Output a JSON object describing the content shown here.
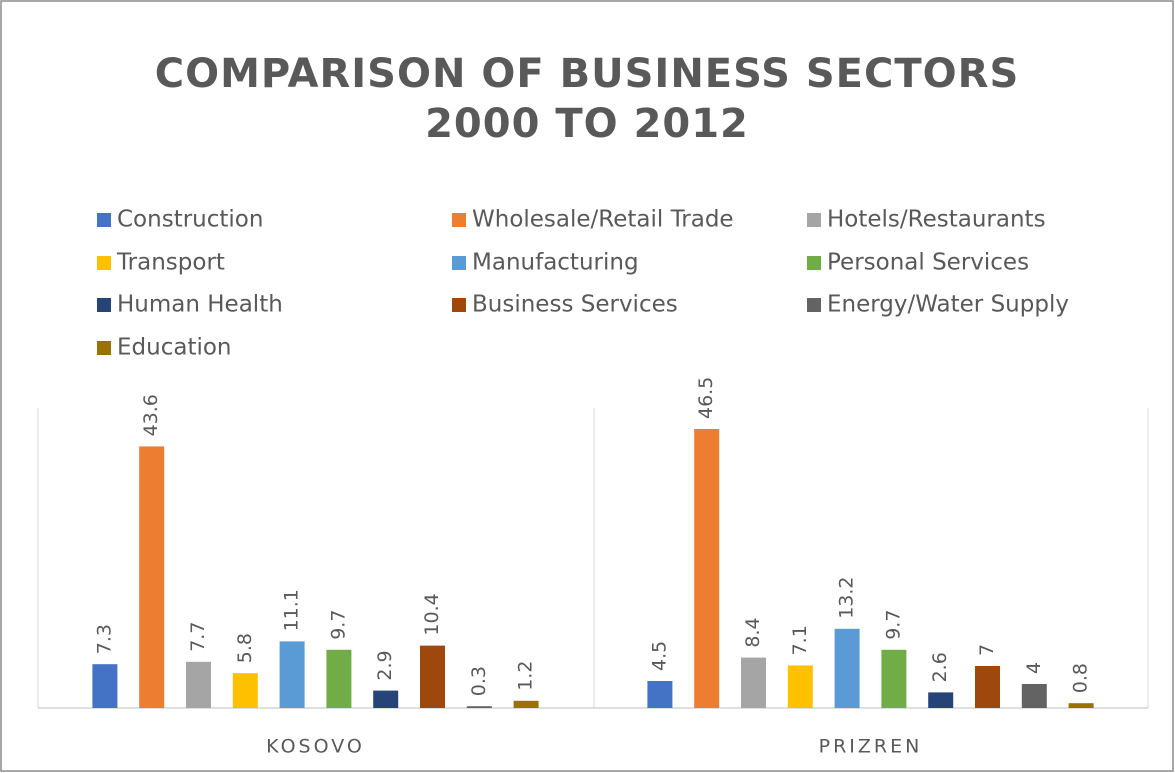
{
  "chart_data": {
    "type": "bar",
    "title": [
      "COMPARISON OF BUSINESS SECTORS",
      "2000 TO 2012"
    ],
    "categories": [
      "KOSOVO",
      "PRIZREN"
    ],
    "series": [
      {
        "name": "Construction",
        "color": "#4472c4",
        "values": [
          7.3,
          4.5
        ]
      },
      {
        "name": "Wholesale/Retail Trade",
        "color": "#ed7d31",
        "values": [
          43.6,
          46.5
        ]
      },
      {
        "name": "Hotels/Restaurants",
        "color": "#a5a5a5",
        "values": [
          7.7,
          8.4
        ]
      },
      {
        "name": "Transport",
        "color": "#ffc000",
        "values": [
          5.8,
          7.1
        ]
      },
      {
        "name": "Manufacturing",
        "color": "#5b9bd5",
        "values": [
          11.1,
          13.2
        ]
      },
      {
        "name": "Personal Services",
        "color": "#70ad47",
        "values": [
          9.7,
          9.7
        ]
      },
      {
        "name": "Human Health",
        "color": "#264478",
        "values": [
          2.9,
          2.6
        ]
      },
      {
        "name": "Business Services",
        "color": "#9e480e",
        "values": [
          10.4,
          7
        ]
      },
      {
        "name": "Energy/Water Supply",
        "color": "#636363",
        "values": [
          0.3,
          4
        ]
      },
      {
        "name": "Education",
        "color": "#997300",
        "values": [
          1.2,
          0.8
        ]
      }
    ],
    "ylim": [
      0,
      50
    ],
    "legend": "top"
  }
}
